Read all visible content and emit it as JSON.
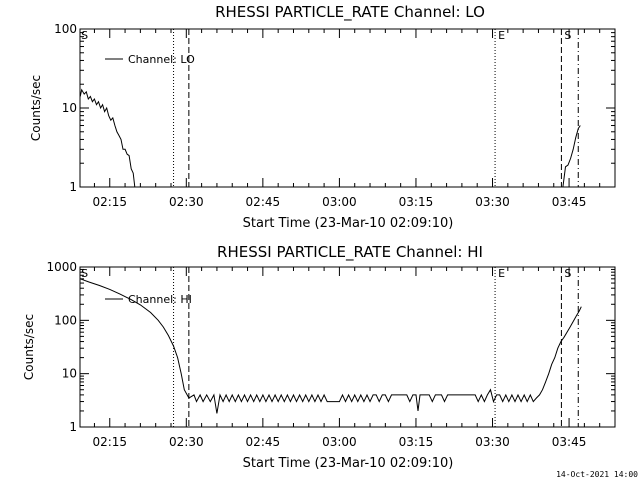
{
  "footer": {
    "date": "14-Oct-2021 14:00"
  },
  "chart_data": [
    {
      "type": "line",
      "title": "RHESSI PARTICLE_RATE Channel: LO",
      "xlabel": "Start Time (23-Mar-10 02:09:10)",
      "ylabel": "Counts/sec",
      "x_tick_labels": [
        "02:15",
        "02:30",
        "02:45",
        "03:00",
        "03:15",
        "03:30",
        "03:45"
      ],
      "x_tick_minutes": [
        15,
        30,
        45,
        60,
        75,
        90,
        105
      ],
      "xlim_minutes": [
        9.17,
        114
      ],
      "y_scale": "log",
      "ylim": [
        1,
        100
      ],
      "y_tick_labels": [
        "1",
        "10",
        "100"
      ],
      "y_tick_values": [
        1,
        10,
        100
      ],
      "legend": {
        "label": "Channel: LO",
        "placement": "top-left"
      },
      "markers": [
        {
          "label": "S",
          "minute": 9.2,
          "style": "none"
        },
        {
          "label": "",
          "minute": 27.5,
          "style": "dotted"
        },
        {
          "label": "",
          "minute": 30.5,
          "style": "dashed"
        },
        {
          "label": "E",
          "minute": 90.5,
          "style": "dotted"
        },
        {
          "label": "S",
          "minute": 103.5,
          "style": "dashed"
        },
        {
          "label": "",
          "minute": 106.8,
          "style": "dashdot"
        }
      ],
      "series": [
        {
          "segments": [
            [
              [
                9.2,
                14
              ],
              [
                9.5,
                17
              ],
              [
                10,
                15
              ],
              [
                10.4,
                16
              ],
              [
                10.8,
                13
              ],
              [
                11.2,
                14
              ],
              [
                11.6,
                12
              ],
              [
                12,
                13
              ],
              [
                12.4,
                11
              ],
              [
                12.8,
                12
              ],
              [
                13.2,
                10
              ],
              [
                13.6,
                11
              ],
              [
                14,
                9
              ],
              [
                14.4,
                10
              ],
              [
                14.8,
                8
              ],
              [
                15.2,
                7
              ],
              [
                15.6,
                7.5
              ],
              [
                16,
                6
              ],
              [
                16.4,
                5
              ],
              [
                16.8,
                4.5
              ],
              [
                17.2,
                4
              ],
              [
                17.6,
                3
              ],
              [
                18,
                3
              ],
              [
                18.4,
                2.6
              ],
              [
                18.8,
                2.5
              ],
              [
                19.2,
                1.7
              ],
              [
                19.6,
                1.5
              ],
              [
                19.9,
                1
              ]
            ],
            [
              [
                103.8,
                1
              ],
              [
                104.3,
                1.8
              ],
              [
                104.8,
                1.9
              ],
              [
                105.3,
                2.3
              ],
              [
                105.8,
                3
              ],
              [
                106.3,
                4.2
              ],
              [
                106.8,
                5.5
              ],
              [
                107.2,
                6
              ]
            ]
          ]
        }
      ]
    },
    {
      "type": "line",
      "title": "RHESSI PARTICLE_RATE Channel: HI",
      "xlabel": "Start Time (23-Mar-10 02:09:10)",
      "ylabel": "Counts/sec",
      "x_tick_labels": [
        "02:15",
        "02:30",
        "02:45",
        "03:00",
        "03:15",
        "03:30",
        "03:45"
      ],
      "x_tick_minutes": [
        15,
        30,
        45,
        60,
        75,
        90,
        105
      ],
      "xlim_minutes": [
        9.17,
        114
      ],
      "y_scale": "log",
      "ylim": [
        1,
        1000
      ],
      "y_tick_labels": [
        "1",
        "10",
        "100",
        "1000"
      ],
      "y_tick_values": [
        1,
        10,
        100,
        1000
      ],
      "legend": {
        "label": "Channel: HI",
        "placement": "top-left"
      },
      "markers": [
        {
          "label": "S",
          "minute": 9.2,
          "style": "none"
        },
        {
          "label": "",
          "minute": 27.5,
          "style": "dotted"
        },
        {
          "label": "",
          "minute": 30.5,
          "style": "dashed"
        },
        {
          "label": "E",
          "minute": 90.5,
          "style": "dotted"
        },
        {
          "label": "S",
          "minute": 103.5,
          "style": "dashed"
        },
        {
          "label": "",
          "minute": 106.8,
          "style": "dashdot"
        }
      ],
      "series": [
        {
          "segments": [
            [
              [
                9.2,
                600
              ],
              [
                11,
                520
              ],
              [
                13,
                450
              ],
              [
                15,
                380
              ],
              [
                17,
                310
              ],
              [
                19,
                250
              ],
              [
                21,
                195
              ],
              [
                23,
                140
              ],
              [
                24.5,
                100
              ],
              [
                25.5,
                75
              ],
              [
                26.5,
                52
              ],
              [
                27.5,
                33
              ],
              [
                28.3,
                20
              ],
              [
                29,
                10
              ],
              [
                29.6,
                5
              ],
              [
                30.5,
                3.5
              ],
              [
                31.5,
                4
              ],
              [
                32,
                3
              ],
              [
                32.7,
                4
              ],
              [
                33.3,
                3
              ],
              [
                34,
                4
              ],
              [
                34.7,
                3
              ],
              [
                35.4,
                4
              ],
              [
                36,
                1.8
              ],
              [
                36.6,
                4
              ],
              [
                37.2,
                3
              ],
              [
                37.8,
                4
              ],
              [
                38.4,
                3
              ],
              [
                39,
                4
              ],
              [
                39.6,
                3
              ],
              [
                40.2,
                4
              ],
              [
                40.8,
                3
              ],
              [
                41.4,
                4
              ],
              [
                42,
                3
              ],
              [
                42.6,
                4
              ],
              [
                43.2,
                3
              ],
              [
                43.8,
                4
              ],
              [
                44.4,
                3
              ],
              [
                45,
                4
              ],
              [
                45.6,
                3
              ],
              [
                46.2,
                4
              ],
              [
                46.8,
                3
              ],
              [
                47.4,
                4
              ],
              [
                48,
                3
              ],
              [
                48.6,
                4
              ],
              [
                49.2,
                3
              ],
              [
                49.8,
                4
              ],
              [
                50.4,
                3
              ],
              [
                51,
                4
              ],
              [
                51.6,
                3
              ],
              [
                52.2,
                4
              ],
              [
                52.8,
                3
              ],
              [
                53.4,
                4
              ],
              [
                54,
                3
              ],
              [
                54.6,
                4
              ],
              [
                55.2,
                3
              ],
              [
                55.8,
                4
              ],
              [
                56.4,
                3
              ],
              [
                57,
                4
              ],
              [
                57.6,
                3
              ],
              [
                58.2,
                3
              ],
              [
                58.8,
                3
              ],
              [
                59.4,
                3
              ],
              [
                60,
                3
              ],
              [
                60.6,
                4
              ],
              [
                61.2,
                3
              ],
              [
                61.8,
                4
              ],
              [
                62.4,
                3
              ],
              [
                63,
                4
              ],
              [
                63.6,
                3
              ],
              [
                64.2,
                4
              ],
              [
                64.8,
                3
              ],
              [
                65.4,
                4
              ],
              [
                66,
                3
              ],
              [
                66.6,
                4
              ],
              [
                67.2,
                4
              ],
              [
                67.8,
                3
              ],
              [
                68.4,
                4
              ],
              [
                69,
                4
              ],
              [
                69.6,
                3
              ],
              [
                70.2,
                4
              ],
              [
                70.8,
                4
              ],
              [
                71.4,
                4
              ],
              [
                72,
                4
              ],
              [
                72.6,
                4
              ],
              [
                73.2,
                4
              ],
              [
                73.8,
                3
              ],
              [
                74.4,
                4
              ],
              [
                75,
                4
              ],
              [
                75.4,
                2
              ],
              [
                75.8,
                4
              ],
              [
                76.4,
                4
              ],
              [
                77,
                4
              ],
              [
                77.6,
                4
              ],
              [
                78.2,
                3
              ],
              [
                78.8,
                4
              ],
              [
                79.4,
                4
              ],
              [
                80,
                4
              ],
              [
                80.6,
                3
              ],
              [
                81.2,
                4
              ],
              [
                81.8,
                4
              ],
              [
                82.4,
                4
              ],
              [
                83,
                4
              ],
              [
                83.6,
                4
              ],
              [
                84.2,
                4
              ],
              [
                84.8,
                4
              ],
              [
                85.4,
                4
              ],
              [
                86,
                4
              ],
              [
                86.6,
                4
              ],
              [
                87.2,
                3
              ],
              [
                87.8,
                4
              ],
              [
                88.4,
                3
              ],
              [
                89,
                4
              ],
              [
                89.6,
                5
              ],
              [
                90.2,
                3
              ],
              [
                90.8,
                4
              ],
              [
                91.4,
                4
              ],
              [
                92,
                3
              ],
              [
                92.6,
                4
              ],
              [
                93.2,
                3
              ],
              [
                93.8,
                4
              ],
              [
                94.4,
                3
              ],
              [
                95,
                4
              ],
              [
                95.6,
                3
              ],
              [
                96.2,
                4
              ],
              [
                96.8,
                3
              ],
              [
                97.4,
                4
              ],
              [
                98,
                3
              ],
              [
                98.6,
                3.5
              ],
              [
                99.2,
                4
              ],
              [
                99.8,
                5
              ],
              [
                100.4,
                7
              ],
              [
                101,
                10
              ],
              [
                101.6,
                15
              ],
              [
                102.2,
                20
              ],
              [
                102.8,
                30
              ],
              [
                103.4,
                40
              ],
              [
                104,
                48
              ],
              [
                104.6,
                60
              ],
              [
                105.2,
                75
              ],
              [
                105.8,
                95
              ],
              [
                106.4,
                120
              ],
              [
                107,
                150
              ],
              [
                107.4,
                180
              ]
            ]
          ]
        }
      ]
    }
  ]
}
